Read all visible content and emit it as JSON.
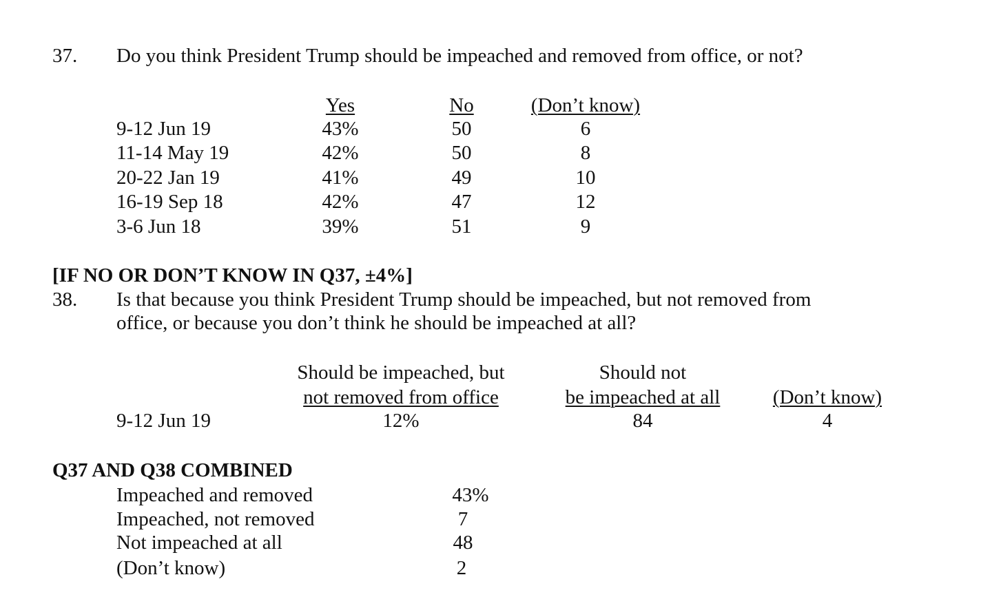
{
  "q37": {
    "number": "37.",
    "question": "Do you think President Trump should be impeached and removed from office, or not?",
    "headers": [
      "Yes",
      "No",
      "(Don’t know)"
    ],
    "rows": [
      {
        "date": "9-12 Jun 19",
        "yes": "43%",
        "no": "50",
        "dk": "6"
      },
      {
        "date": "11-14 May 19",
        "yes": "42%",
        "no": "50",
        "dk": "8"
      },
      {
        "date": "20-22 Jan 19",
        "yes": "41%",
        "no": "49",
        "dk": "10"
      },
      {
        "date": "16-19 Sep 18",
        "yes": "42%",
        "no": "47",
        "dk": "12"
      },
      {
        "date": "3-6 Jun 18",
        "yes": "39%",
        "no": "51",
        "dk": "9"
      }
    ]
  },
  "q38": {
    "filter": "[IF NO OR DON’T KNOW IN Q37, ±4%]",
    "number": "38.",
    "question_line1": "Is that because you think President Trump should be impeached, but not removed from",
    "question_line2": "office, or because you don’t think he should be impeached at all?",
    "headers": {
      "col1_line1": "Should be impeached, but",
      "col1_line2": "not removed from office",
      "col2_line1": "Should not",
      "col2_line2": "be impeached at all",
      "col3": "(Don’t know)"
    },
    "row": {
      "date": "9-12 Jun 19",
      "col1": "12%",
      "col2": "84",
      "col3": "4"
    }
  },
  "combined": {
    "title": "Q37 AND Q38 COMBINED",
    "rows": [
      {
        "label": "Impeached and removed",
        "value": "43%"
      },
      {
        "label": "Impeached, not removed",
        "value": "7"
      },
      {
        "label": "Not impeached at all",
        "value": "48"
      },
      {
        "label": "(Don’t know)",
        "value": "2"
      }
    ]
  }
}
